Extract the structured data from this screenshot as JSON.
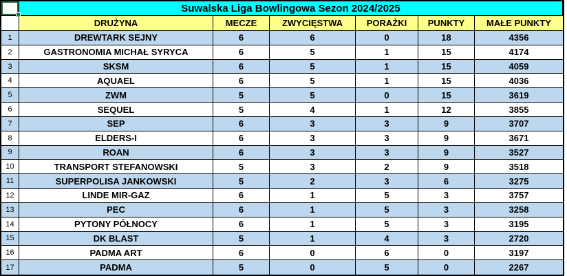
{
  "colors": {
    "title_bg": "#00FFFF",
    "header_bg": "#FFFF8C",
    "stripe_blue": "#BDD7EE",
    "row_white": "#FFFFFF",
    "grid_line": "#000000",
    "selection_green": "#217346"
  },
  "title": "Suwalska Liga Bowlingowa Sezon 2024/2025",
  "table": {
    "columns": [
      "DRUŻYNA",
      "MECZE",
      "ZWYCIĘSTWA",
      "PORAŻKI",
      "PUNKTY",
      "MAŁE PUNKTY"
    ],
    "rows": [
      {
        "pos": "1",
        "team": "DREWTARK SEJNY",
        "mecze": "6",
        "zwyciestwa": "6",
        "porazki": "0",
        "punkty": "18",
        "male_punkty": "4356"
      },
      {
        "pos": "2",
        "team": "GASTRONOMIA MICHAŁ SYRYCA",
        "mecze": "6",
        "zwyciestwa": "5",
        "porazki": "1",
        "punkty": "15",
        "male_punkty": "4174"
      },
      {
        "pos": "3",
        "team": "SKSM",
        "mecze": "6",
        "zwyciestwa": "5",
        "porazki": "1",
        "punkty": "15",
        "male_punkty": "4059"
      },
      {
        "pos": "4",
        "team": "AQUAEL",
        "mecze": "6",
        "zwyciestwa": "5",
        "porazki": "1",
        "punkty": "15",
        "male_punkty": "4036"
      },
      {
        "pos": "5",
        "team": "ZWM",
        "mecze": "5",
        "zwyciestwa": "5",
        "porazki": "0",
        "punkty": "15",
        "male_punkty": "3619"
      },
      {
        "pos": "6",
        "team": "SEQUEL",
        "mecze": "5",
        "zwyciestwa": "4",
        "porazki": "1",
        "punkty": "12",
        "male_punkty": "3855"
      },
      {
        "pos": "7",
        "team": "SEP",
        "mecze": "6",
        "zwyciestwa": "3",
        "porazki": "3",
        "punkty": "9",
        "male_punkty": "3707"
      },
      {
        "pos": "8",
        "team": "ELDERS-I",
        "mecze": "6",
        "zwyciestwa": "3",
        "porazki": "3",
        "punkty": "9",
        "male_punkty": "3671"
      },
      {
        "pos": "9",
        "team": "ROAN",
        "mecze": "6",
        "zwyciestwa": "3",
        "porazki": "3",
        "punkty": "9",
        "male_punkty": "3527"
      },
      {
        "pos": "10",
        "team": "TRANSPORT STEFANOWSKI",
        "mecze": "5",
        "zwyciestwa": "3",
        "porazki": "2",
        "punkty": "9",
        "male_punkty": "3518"
      },
      {
        "pos": "11",
        "team": "SUPERPOLISA JANKOWSKI",
        "mecze": "5",
        "zwyciestwa": "2",
        "porazki": "3",
        "punkty": "6",
        "male_punkty": "3275"
      },
      {
        "pos": "12",
        "team": "LINDE MIR-GAZ",
        "mecze": "6",
        "zwyciestwa": "1",
        "porazki": "5",
        "punkty": "3",
        "male_punkty": "3757"
      },
      {
        "pos": "13",
        "team": "PEC",
        "mecze": "6",
        "zwyciestwa": "1",
        "porazki": "5",
        "punkty": "3",
        "male_punkty": "3258"
      },
      {
        "pos": "14",
        "team": "PYTONY PÓŁNOCY",
        "mecze": "6",
        "zwyciestwa": "1",
        "porazki": "5",
        "punkty": "3",
        "male_punkty": "3195"
      },
      {
        "pos": "15",
        "team": "DK BLAST",
        "mecze": "5",
        "zwyciestwa": "1",
        "porazki": "4",
        "punkty": "3",
        "male_punkty": "2720"
      },
      {
        "pos": "16",
        "team": "PADMA ART",
        "mecze": "6",
        "zwyciestwa": "0",
        "porazki": "6",
        "punkty": "0",
        "male_punkty": "3197"
      },
      {
        "pos": "17",
        "team": "PADMA",
        "mecze": "5",
        "zwyciestwa": "0",
        "porazki": "5",
        "punkty": "0",
        "male_punkty": "2267"
      }
    ]
  }
}
